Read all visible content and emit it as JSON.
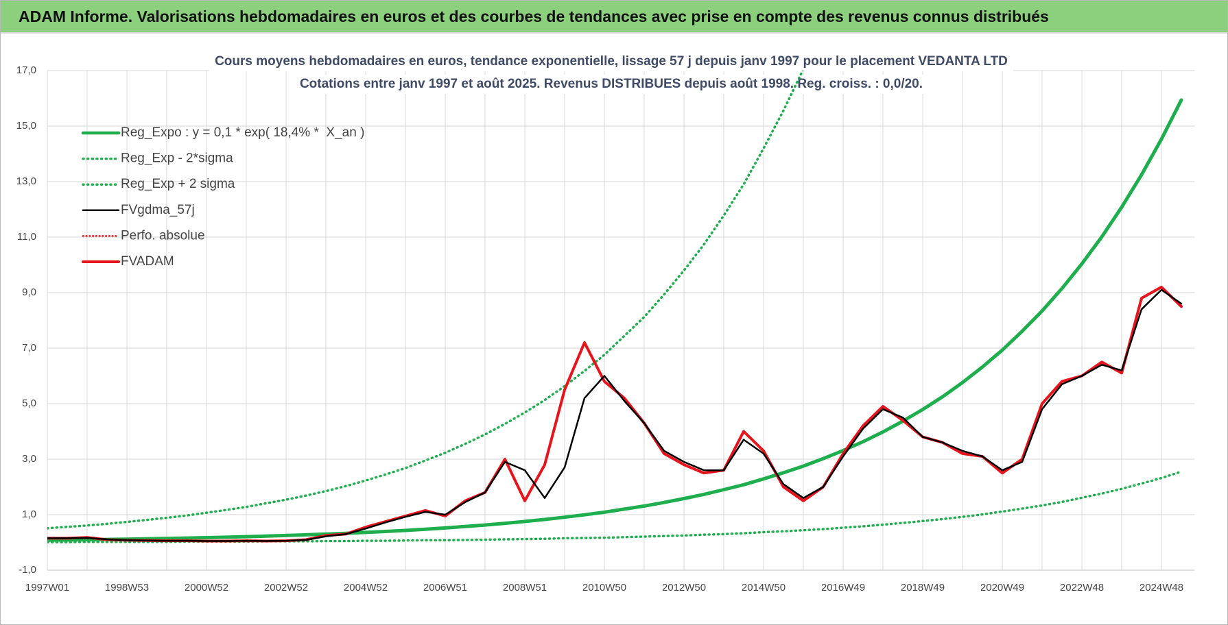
{
  "header": {
    "title": "ADAM Informe. Valorisations hebdomadaires en euros et des courbes de tendances avec prise en compte des revenus connus distribués"
  },
  "chart_data": {
    "type": "line",
    "subtitle": [
      "Cours moyens hebdomadaires en euros, tendance exponentielle, lissage 57 j depuis janv 1997  pour le placement VEDANTA LTD",
      "Cotations entre janv 1997 et août 2025.  Revenus DISTRIBUES depuis août 1998.  Reg.  croiss. : 0,0/20."
    ],
    "categories": [
      "1997W01",
      null,
      null,
      null,
      "1998W53",
      null,
      null,
      null,
      "2000W52",
      null,
      null,
      null,
      "2002W52",
      null,
      null,
      null,
      "2004W52",
      null,
      null,
      null,
      "2006W51",
      null,
      null,
      null,
      "2008W51",
      null,
      null,
      null,
      "2010W50",
      null,
      null,
      null,
      "2012W50",
      null,
      null,
      null,
      "2014W50",
      null,
      null,
      null,
      "2016W49",
      null,
      null,
      null,
      "2018W49",
      null,
      null,
      null,
      "2020W49",
      null,
      null,
      null,
      "2022W48",
      null,
      null,
      null,
      "2024W48",
      null
    ],
    "ylim": [
      -1,
      17
    ],
    "yticks": [
      {
        "value": -1,
        "label": "-1,0"
      },
      {
        "value": 1,
        "label": "1,0"
      },
      {
        "value": 3,
        "label": "3,0"
      },
      {
        "value": 5,
        "label": "5,0"
      },
      {
        "value": 7,
        "label": "7,0"
      },
      {
        "value": 9,
        "label": "9,0"
      },
      {
        "value": 11,
        "label": "11,0"
      },
      {
        "value": 13,
        "label": "13,0"
      },
      {
        "value": 15,
        "label": "15,0"
      },
      {
        "value": 17,
        "label": "17,0"
      }
    ],
    "grid": true,
    "legend": "top-left",
    "series": [
      {
        "name": "Reg_Expo : y = 0,1 * exp( 18,4% *  X_an )",
        "color": "#1fae4e",
        "style": "solid",
        "width": 5,
        "values": [
          0.082,
          0.09,
          0.099,
          0.108,
          0.119,
          0.13,
          0.143,
          0.157,
          0.172,
          0.188,
          0.207,
          0.227,
          0.249,
          0.273,
          0.299,
          0.328,
          0.36,
          0.395,
          0.433,
          0.475,
          0.521,
          0.572,
          0.627,
          0.688,
          0.755,
          0.828,
          0.908,
          0.996,
          1.09,
          1.2,
          1.31,
          1.44,
          1.58,
          1.73,
          1.9,
          2.08,
          2.29,
          2.51,
          2.75,
          3.02,
          3.31,
          3.63,
          3.98,
          4.37,
          4.79,
          5.25,
          5.76,
          6.32,
          6.93,
          7.61,
          8.34,
          9.15,
          10.04,
          11.01,
          12.08,
          13.25,
          14.53,
          15.94
        ]
      },
      {
        "name": "Reg_Exp - 2*sigma",
        "color": "#1fae4e",
        "style": "dotted",
        "width": 3.5,
        "values": [
          0.01,
          0.01,
          0.02,
          0.02,
          0.02,
          0.02,
          0.02,
          0.03,
          0.03,
          0.03,
          0.03,
          0.04,
          0.04,
          0.04,
          0.05,
          0.05,
          0.06,
          0.06,
          0.07,
          0.08,
          0.08,
          0.09,
          0.1,
          0.11,
          0.12,
          0.13,
          0.15,
          0.16,
          0.17,
          0.19,
          0.21,
          0.23,
          0.25,
          0.28,
          0.3,
          0.33,
          0.37,
          0.4,
          0.44,
          0.48,
          0.53,
          0.58,
          0.64,
          0.7,
          0.77,
          0.84,
          0.92,
          1.01,
          1.11,
          1.22,
          1.33,
          1.46,
          1.61,
          1.76,
          1.93,
          2.12,
          2.32,
          2.55
        ]
      },
      {
        "name": "Reg_Exp + 2 sigma",
        "color": "#1fae4e",
        "style": "dotted",
        "width": 3.5,
        "values": [
          0.51,
          0.56,
          0.61,
          0.67,
          0.74,
          0.81,
          0.89,
          0.97,
          1.07,
          1.17,
          1.28,
          1.41,
          1.54,
          1.69,
          1.85,
          2.03,
          2.23,
          2.45,
          2.68,
          2.95,
          3.23,
          3.55,
          3.89,
          4.27,
          4.68,
          5.13,
          5.63,
          6.18,
          6.76,
          7.44,
          8.12,
          8.93,
          9.8,
          10.73,
          11.78,
          12.9,
          14.2,
          15.56,
          17.05,
          null,
          null,
          null,
          null,
          null,
          null,
          null,
          null,
          null,
          null,
          null,
          null,
          null,
          null,
          null,
          null,
          null,
          null,
          null
        ]
      },
      {
        "name": "FVgdma_57j",
        "color": "#000000",
        "style": "solid",
        "width": 2.5,
        "values": [
          0.15,
          0.15,
          0.16,
          0.11,
          0.08,
          0.07,
          0.06,
          0.06,
          0.05,
          0.05,
          0.06,
          0.05,
          0.06,
          0.09,
          0.22,
          0.3,
          0.5,
          0.72,
          0.92,
          1.1,
          1.0,
          1.45,
          1.8,
          2.9,
          2.6,
          1.6,
          2.7,
          5.2,
          6.0,
          5.1,
          4.3,
          3.3,
          2.9,
          2.6,
          2.6,
          3.7,
          3.2,
          2.1,
          1.6,
          2.0,
          3.1,
          4.1,
          4.8,
          4.5,
          3.8,
          3.6,
          3.3,
          3.1,
          2.6,
          2.9,
          4.8,
          5.7,
          6.0,
          6.4,
          6.2,
          8.4,
          9.1,
          8.6
        ]
      },
      {
        "name": "Perfo. absolue",
        "color": "#e8141c",
        "style": "dotted",
        "width": 2.5,
        "values": [
          0.15,
          0.15,
          0.18,
          0.1,
          0.08,
          0.07,
          0.06,
          0.06,
          0.05,
          0.05,
          0.06,
          0.05,
          0.06,
          0.1,
          0.25,
          0.3,
          0.55,
          0.75,
          0.95,
          1.15,
          0.95,
          1.5,
          1.8,
          3.0,
          1.5,
          2.8,
          5.5,
          7.2,
          5.8,
          5.2,
          4.3,
          3.2,
          2.8,
          2.5,
          2.6,
          4.0,
          3.3,
          2.0,
          1.5,
          2.0,
          3.2,
          4.2,
          4.9,
          4.4,
          3.8,
          3.6,
          3.2,
          3.1,
          2.5,
          3.0,
          5.0,
          5.8,
          6.0,
          6.5,
          6.1,
          8.8,
          9.2,
          8.5
        ]
      },
      {
        "name": "FVADAM",
        "color": "#e8141c",
        "style": "solid",
        "width": 4,
        "values": [
          0.15,
          0.15,
          0.18,
          0.1,
          0.08,
          0.07,
          0.06,
          0.06,
          0.05,
          0.05,
          0.06,
          0.05,
          0.06,
          0.1,
          0.25,
          0.3,
          0.55,
          0.75,
          0.95,
          1.15,
          0.95,
          1.5,
          1.8,
          3.0,
          1.5,
          2.8,
          5.5,
          7.2,
          5.8,
          5.2,
          4.3,
          3.2,
          2.8,
          2.5,
          2.6,
          4.0,
          3.3,
          2.0,
          1.5,
          2.0,
          3.2,
          4.2,
          4.9,
          4.4,
          3.8,
          3.6,
          3.2,
          3.1,
          2.5,
          3.0,
          5.0,
          5.8,
          6.0,
          6.5,
          6.1,
          8.8,
          9.2,
          8.5
        ]
      }
    ]
  }
}
